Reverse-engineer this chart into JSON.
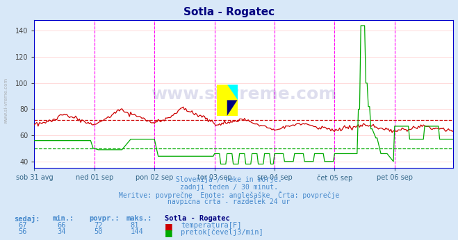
{
  "title": "Sotla - Rogatec",
  "title_color": "#000080",
  "bg_color": "#d8e8f8",
  "plot_bg_color": "#ffffff",
  "ylim": [
    35,
    148
  ],
  "yticks": [
    40,
    60,
    80,
    100,
    120,
    140
  ],
  "x_day_ticks": [
    0,
    48,
    96,
    144,
    192,
    240,
    288
  ],
  "x_day_labels": [
    "sob 31 avg",
    "ned 01 sep",
    "pon 02 sep",
    "tor 03 sep",
    "sre 04 sep",
    "čet 05 sep",
    "pet 06 sep"
  ],
  "temp_avg": 72,
  "flow_avg": 50,
  "temp_color": "#cc0000",
  "flow_color": "#00aa00",
  "vline_color": "#ff00ff",
  "grid_color": "#ffcccc",
  "subtitle_lines": [
    "Slovenija / reke in morje.",
    "zadnji teden / 30 minut.",
    "Meritve: povprečne  Enote: anglešaške  Črta: povprečje",
    "navpična črta - razdelek 24 ur"
  ],
  "subtitle_color": "#4488cc",
  "table_header": [
    "sedaj:",
    "min.:",
    "povpr.:",
    "maks.:",
    "Sotla - Rogatec"
  ],
  "table_row1": [
    "67",
    "66",
    "72",
    "81"
  ],
  "table_row2": [
    "56",
    "34",
    "50",
    "144"
  ],
  "table_label1": "temperatura[F]",
  "table_label2": "pretok[čevelj3/min]",
  "table_color": "#4488cc",
  "table_header_color": "#000080",
  "watermark": "www.si-vreme.com",
  "watermark_color": "#000080",
  "watermark_alpha": 0.13,
  "left_label": "www.si-vreme.com",
  "left_label_color": "#aaaaaa"
}
